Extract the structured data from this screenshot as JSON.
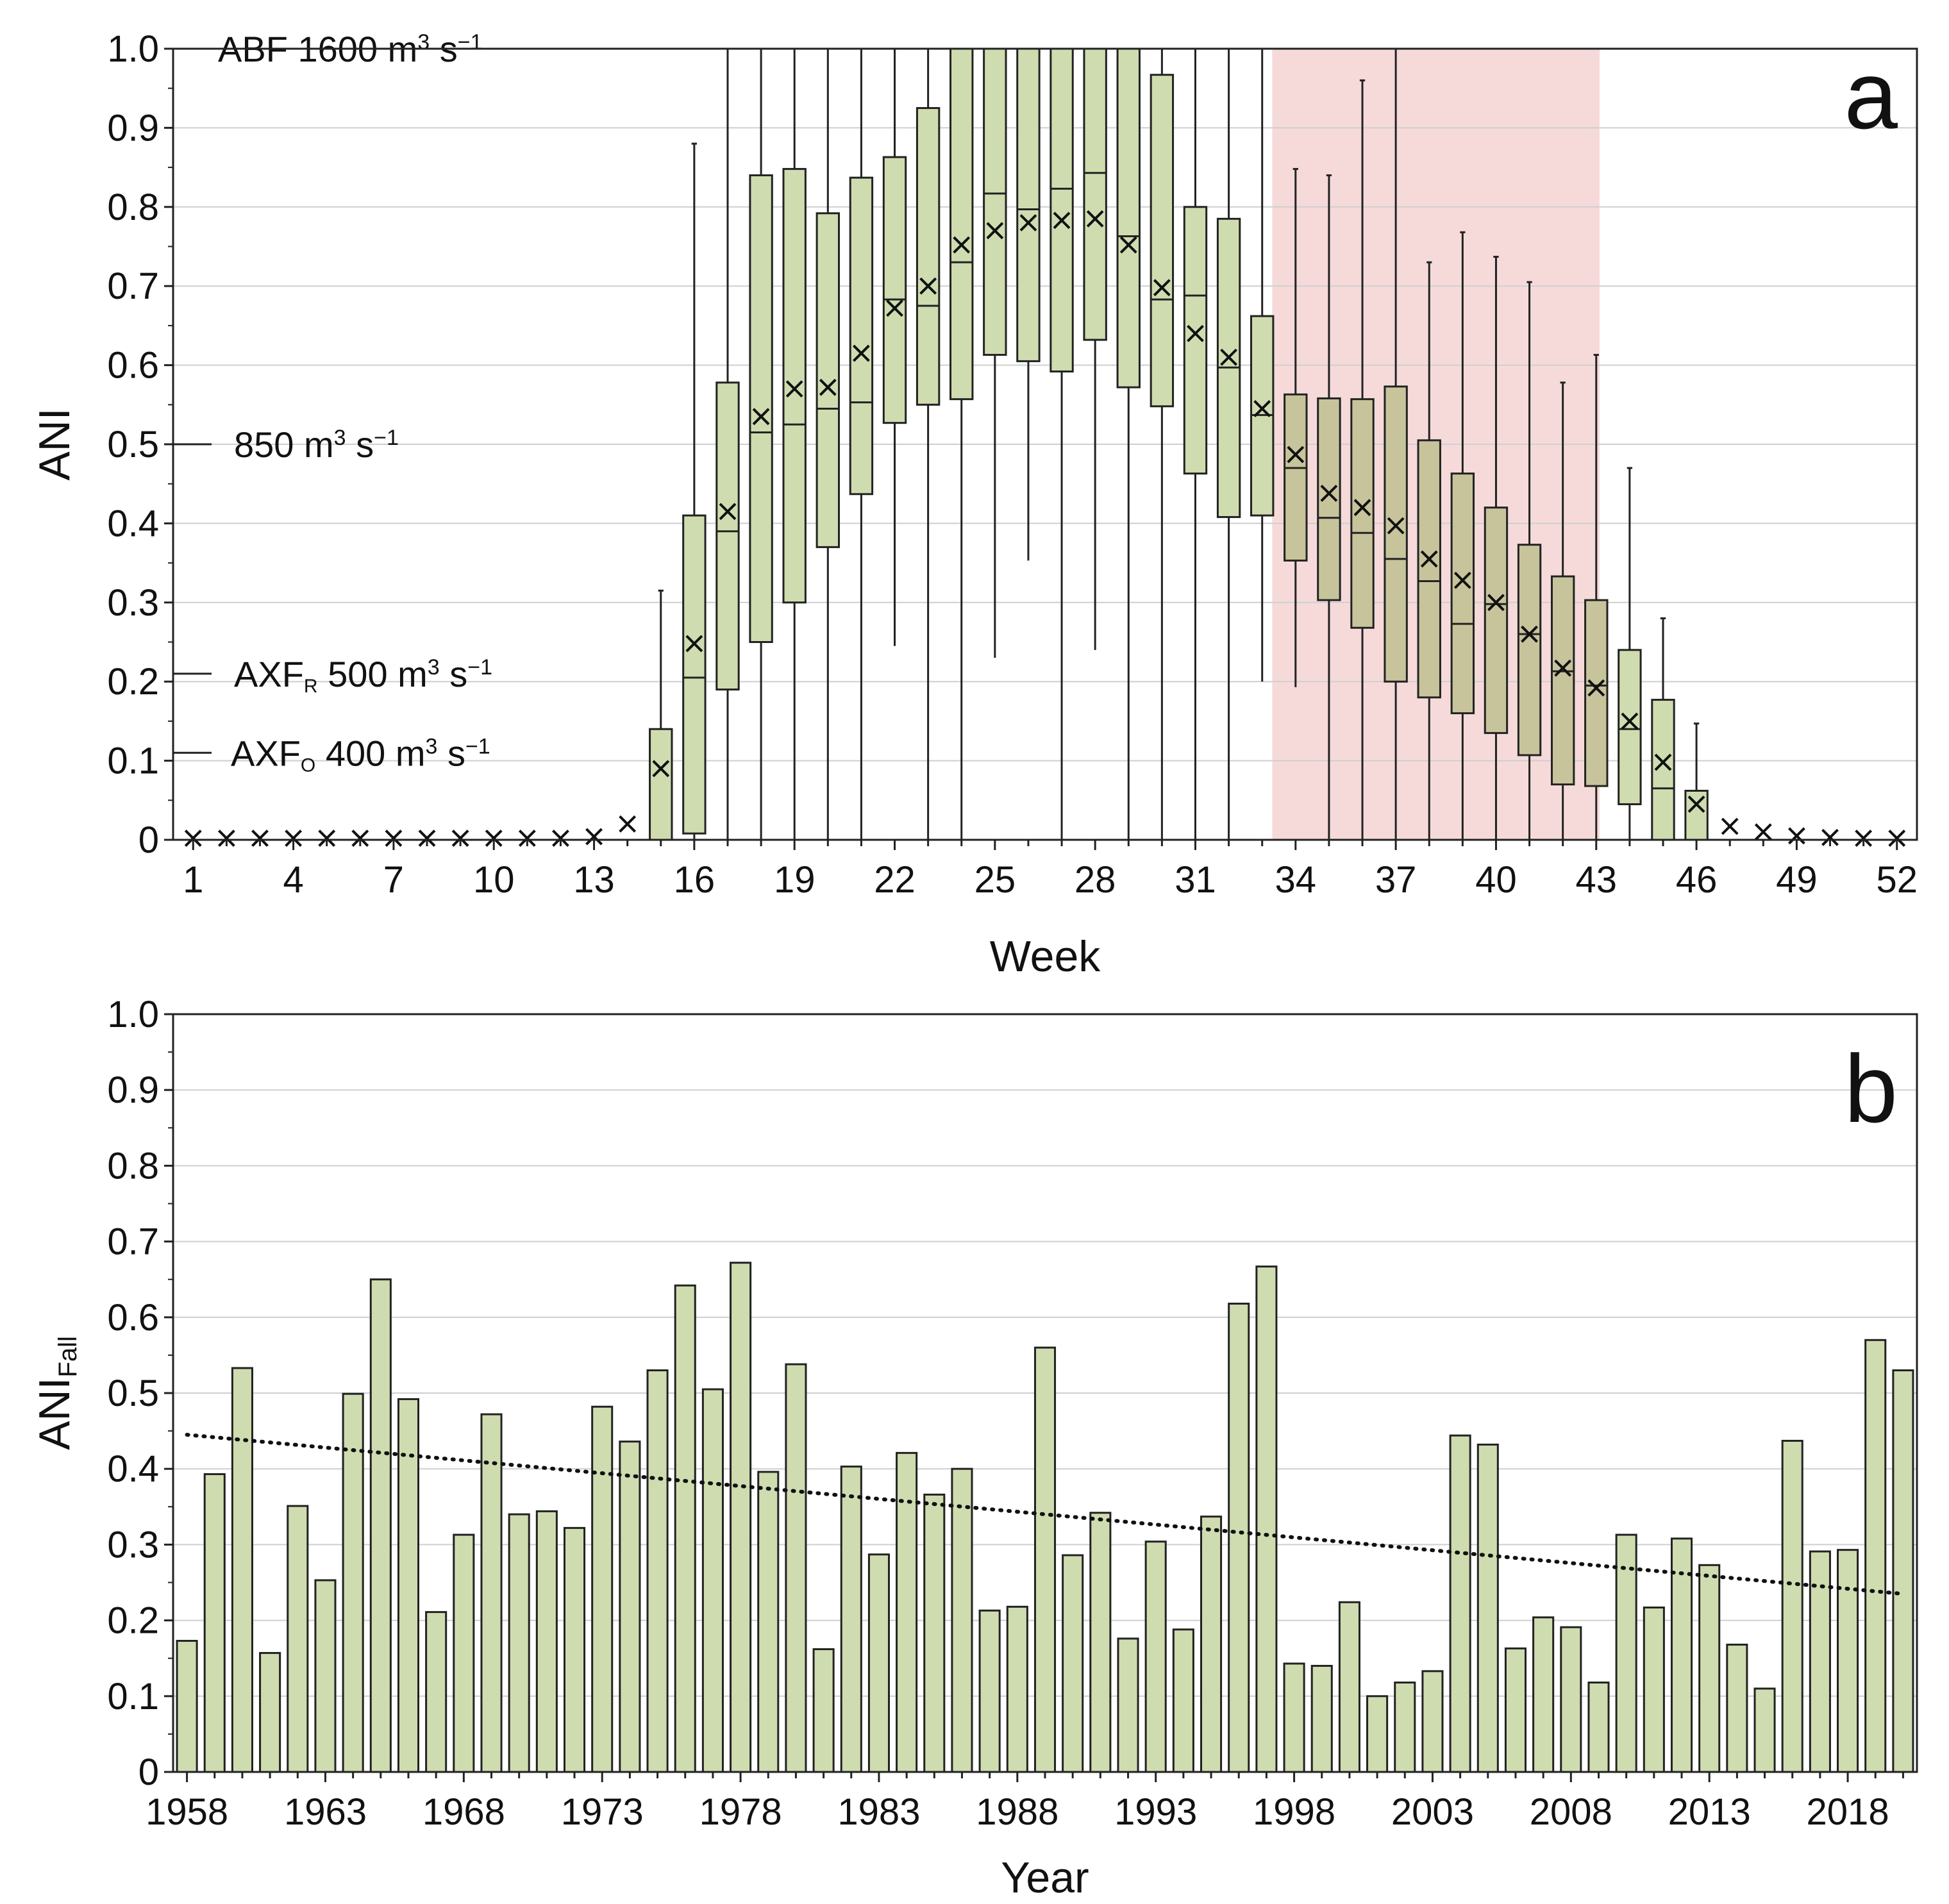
{
  "chart_data": [
    {
      "type": "box",
      "panel_label": "a",
      "xlabel": "Week",
      "ylabel": "ANI",
      "ylim": [
        0,
        1.0
      ],
      "xlim": [
        0.4,
        52.6
      ],
      "x_ticks": [
        1,
        4,
        7,
        10,
        13,
        16,
        19,
        22,
        25,
        28,
        31,
        34,
        37,
        40,
        43,
        46,
        49,
        52
      ],
      "x_tick_labels": [
        "1",
        "4",
        "7",
        "10",
        "13",
        "16",
        "19",
        "22",
        "25",
        "28",
        "31",
        "34",
        "37",
        "40",
        "43",
        "46",
        "49",
        "52"
      ],
      "y_ticks": [
        0,
        0.1,
        0.2,
        0.3,
        0.4,
        0.5,
        0.6,
        0.7,
        0.8,
        0.9,
        1.0
      ],
      "y_tick_labels": [
        "0",
        "0.1",
        "0.2",
        "0.3",
        "0.4",
        "0.5",
        "0.6",
        "0.7",
        "0.8",
        "0.9",
        "1.0"
      ],
      "grid": true,
      "shaded_region": {
        "x_start": 33.3,
        "x_end": 43.1,
        "color": "#f6dada"
      },
      "box_fill": "#cfdcb0",
      "box_fill_shaded": "#c7c49c",
      "reference_lines": [
        {
          "y": 1.0,
          "label_main": "ABF  1600 m",
          "sup": "3",
          "unit_rest": " s",
          "sup2": "−1"
        },
        {
          "y": 0.5,
          "label_main": "850 m",
          "sup": "3",
          "unit_rest": " s",
          "sup2": "−1"
        },
        {
          "y": 0.21,
          "label_main": "AXF",
          "sub": "R",
          "label_after": " 500 m",
          "sup": "3",
          "unit_rest": " s",
          "sup2": "−1"
        },
        {
          "y": 0.11,
          "label_main": "AXF",
          "sub": "O",
          "label_after": "  400 m",
          "sup": "3",
          "unit_rest": " s",
          "sup2": "−1"
        }
      ],
      "boxes": [
        {
          "week": 1,
          "mean": 0.002
        },
        {
          "week": 2,
          "mean": 0.002
        },
        {
          "week": 3,
          "mean": 0.002
        },
        {
          "week": 4,
          "mean": 0.002
        },
        {
          "week": 5,
          "mean": 0.002
        },
        {
          "week": 6,
          "mean": 0.002
        },
        {
          "week": 7,
          "mean": 0.002
        },
        {
          "week": 8,
          "mean": 0.002
        },
        {
          "week": 9,
          "mean": 0.002
        },
        {
          "week": 10,
          "mean": 0.002
        },
        {
          "week": 11,
          "mean": 0.002
        },
        {
          "week": 12,
          "mean": 0.002
        },
        {
          "week": 13,
          "mean": 0.004
        },
        {
          "week": 14,
          "mean": 0.02
        },
        {
          "week": 15,
          "min": 0,
          "q1": 0,
          "median": 0,
          "q3": 0.14,
          "max": 0.315,
          "mean": 0.09
        },
        {
          "week": 16,
          "min": 0,
          "q1": 0.008,
          "median": 0.205,
          "q3": 0.41,
          "max": 0.88,
          "mean": 0.248
        },
        {
          "week": 17,
          "min": 0,
          "q1": 0.19,
          "median": 0.39,
          "q3": 0.578,
          "max": 1.0,
          "mean": 0.415
        },
        {
          "week": 18,
          "min": 0,
          "q1": 0.25,
          "median": 0.515,
          "q3": 0.84,
          "max": 1.0,
          "mean": 0.535
        },
        {
          "week": 19,
          "min": 0,
          "q1": 0.3,
          "median": 0.525,
          "q3": 0.848,
          "max": 1.0,
          "mean": 0.57
        },
        {
          "week": 20,
          "min": 0,
          "q1": 0.37,
          "median": 0.545,
          "q3": 0.792,
          "max": 1.0,
          "mean": 0.572
        },
        {
          "week": 21,
          "min": 0,
          "q1": 0.437,
          "median": 0.553,
          "q3": 0.837,
          "max": 1.0,
          "mean": 0.615
        },
        {
          "week": 22,
          "min": 0.245,
          "q1": 0.527,
          "median": 0.683,
          "q3": 0.863,
          "max": 1.0,
          "mean": 0.672
        },
        {
          "week": 23,
          "min": 0,
          "q1": 0.55,
          "median": 0.675,
          "q3": 0.925,
          "max": 1.0,
          "mean": 0.7
        },
        {
          "week": 24,
          "min": 0,
          "q1": 0.557,
          "median": 0.73,
          "q3": 1.0,
          "max": 1.0,
          "mean": 0.752
        },
        {
          "week": 25,
          "min": 0.23,
          "q1": 0.613,
          "median": 0.817,
          "q3": 1.0,
          "max": 1.0,
          "mean": 0.77
        },
        {
          "week": 26,
          "min": 0.353,
          "q1": 0.605,
          "median": 0.797,
          "q3": 1.0,
          "max": 1.0,
          "mean": 0.78
        },
        {
          "week": 27,
          "min": 0,
          "q1": 0.592,
          "median": 0.823,
          "q3": 1.0,
          "max": 1.0,
          "mean": 0.783
        },
        {
          "week": 28,
          "min": 0.24,
          "q1": 0.632,
          "median": 0.843,
          "q3": 1.0,
          "max": 1.0,
          "mean": 0.785
        },
        {
          "week": 29,
          "min": 0,
          "q1": 0.572,
          "median": 0.763,
          "q3": 1.0,
          "max": 1.0,
          "mean": 0.752
        },
        {
          "week": 30,
          "min": 0,
          "q1": 0.548,
          "median": 0.683,
          "q3": 0.967,
          "max": 1.0,
          "mean": 0.698
        },
        {
          "week": 31,
          "min": 0,
          "q1": 0.463,
          "median": 0.688,
          "q3": 0.8,
          "max": 1.0,
          "mean": 0.64
        },
        {
          "week": 32,
          "min": 0,
          "q1": 0.408,
          "median": 0.597,
          "q3": 0.785,
          "max": 1.0,
          "mean": 0.61
        },
        {
          "week": 33,
          "min": 0.2,
          "q1": 0.41,
          "median": 0.537,
          "q3": 0.662,
          "max": 1.0,
          "mean": 0.545
        },
        {
          "week": 34,
          "min": 0.193,
          "q1": 0.353,
          "median": 0.47,
          "q3": 0.563,
          "max": 0.848,
          "mean": 0.487
        },
        {
          "week": 35,
          "min": 0,
          "q1": 0.303,
          "median": 0.407,
          "q3": 0.558,
          "max": 0.84,
          "mean": 0.438
        },
        {
          "week": 36,
          "min": 0,
          "q1": 0.268,
          "median": 0.388,
          "q3": 0.557,
          "max": 0.96,
          "mean": 0.42
        },
        {
          "week": 37,
          "min": 0,
          "q1": 0.2,
          "median": 0.355,
          "q3": 0.573,
          "max": 1.0,
          "mean": 0.397
        },
        {
          "week": 38,
          "min": 0,
          "q1": 0.18,
          "median": 0.327,
          "q3": 0.505,
          "max": 0.73,
          "mean": 0.355
        },
        {
          "week": 39,
          "min": 0,
          "q1": 0.16,
          "median": 0.273,
          "q3": 0.463,
          "max": 0.768,
          "mean": 0.328
        },
        {
          "week": 40,
          "min": 0,
          "q1": 0.135,
          "median": 0.298,
          "q3": 0.42,
          "max": 0.737,
          "mean": 0.3
        },
        {
          "week": 41,
          "min": 0,
          "q1": 0.107,
          "median": 0.26,
          "q3": 0.373,
          "max": 0.705,
          "mean": 0.26
        },
        {
          "week": 42,
          "min": 0,
          "q1": 0.07,
          "median": 0.213,
          "q3": 0.333,
          "max": 0.578,
          "mean": 0.217
        },
        {
          "week": 43,
          "min": 0,
          "q1": 0.068,
          "median": 0.195,
          "q3": 0.303,
          "max": 0.613,
          "mean": 0.192
        },
        {
          "week": 44,
          "min": 0,
          "q1": 0.045,
          "median": 0.14,
          "q3": 0.24,
          "max": 0.47,
          "mean": 0.15
        },
        {
          "week": 45,
          "min": 0,
          "q1": 0,
          "median": 0.065,
          "q3": 0.177,
          "max": 0.28,
          "mean": 0.098
        },
        {
          "week": 46,
          "min": 0,
          "q1": 0,
          "median": 0,
          "q3": 0.062,
          "max": 0.147,
          "mean": 0.045
        },
        {
          "week": 47,
          "mean": 0.017
        },
        {
          "week": 48,
          "mean": 0.01
        },
        {
          "week": 49,
          "mean": 0.005
        },
        {
          "week": 50,
          "mean": 0.003
        },
        {
          "week": 51,
          "mean": 0.002
        },
        {
          "week": 52,
          "mean": 0.002
        }
      ]
    },
    {
      "type": "bar",
      "panel_label": "b",
      "xlabel": "Year",
      "ylabel_main": "ANI",
      "ylabel_sub": "Fall",
      "ylim": [
        0,
        1.0
      ],
      "xlim": [
        1957.5,
        2020.5
      ],
      "x_ticks": [
        1958,
        1963,
        1968,
        1973,
        1978,
        1983,
        1988,
        1993,
        1998,
        2003,
        2008,
        2013,
        2018
      ],
      "x_tick_labels": [
        "1958",
        "1963",
        "1968",
        "1973",
        "1978",
        "1983",
        "1988",
        "1993",
        "1998",
        "2003",
        "2008",
        "2013",
        "2018"
      ],
      "y_ticks": [
        0,
        0.1,
        0.2,
        0.3,
        0.4,
        0.5,
        0.6,
        0.7,
        0.8,
        0.9,
        1.0
      ],
      "y_tick_labels": [
        "0",
        "0.1",
        "0.2",
        "0.3",
        "0.4",
        "0.5",
        "0.6",
        "0.7",
        "0.8",
        "0.9",
        "1.0"
      ],
      "grid": true,
      "bar_fill": "#cfdcb0",
      "trend": {
        "type": "linear",
        "style": "dotted",
        "x": [
          1958,
          2020
        ],
        "y": [
          0.445,
          0.235
        ]
      },
      "x": [
        1958,
        1959,
        1960,
        1961,
        1962,
        1963,
        1964,
        1965,
        1966,
        1967,
        1968,
        1969,
        1970,
        1971,
        1972,
        1973,
        1974,
        1975,
        1976,
        1977,
        1978,
        1979,
        1980,
        1981,
        1982,
        1983,
        1984,
        1985,
        1986,
        1987,
        1988,
        1989,
        1990,
        1991,
        1992,
        1993,
        1994,
        1995,
        1996,
        1997,
        1998,
        1999,
        2000,
        2001,
        2002,
        2003,
        2004,
        2005,
        2006,
        2007,
        2008,
        2009,
        2010,
        2011,
        2012,
        2013,
        2014,
        2015,
        2016,
        2017,
        2018,
        2019,
        2020
      ],
      "values": [
        0.173,
        0.393,
        0.533,
        0.157,
        0.351,
        0.253,
        0.499,
        0.65,
        0.492,
        0.211,
        0.313,
        0.472,
        0.34,
        0.344,
        0.322,
        0.482,
        0.436,
        0.53,
        0.642,
        0.505,
        0.672,
        0.396,
        0.538,
        0.162,
        0.403,
        0.287,
        0.421,
        0.366,
        0.4,
        0.213,
        0.218,
        0.56,
        0.286,
        0.342,
        0.176,
        0.304,
        0.188,
        0.337,
        0.618,
        0.667,
        0.143,
        0.14,
        0.224,
        0.1,
        0.118,
        0.133,
        0.444,
        0.432,
        0.163,
        0.204,
        0.191,
        0.118,
        0.313,
        0.217,
        0.308,
        0.273,
        0.168,
        0.11,
        0.437,
        0.291,
        0.293,
        0.57,
        0.53
      ]
    }
  ]
}
